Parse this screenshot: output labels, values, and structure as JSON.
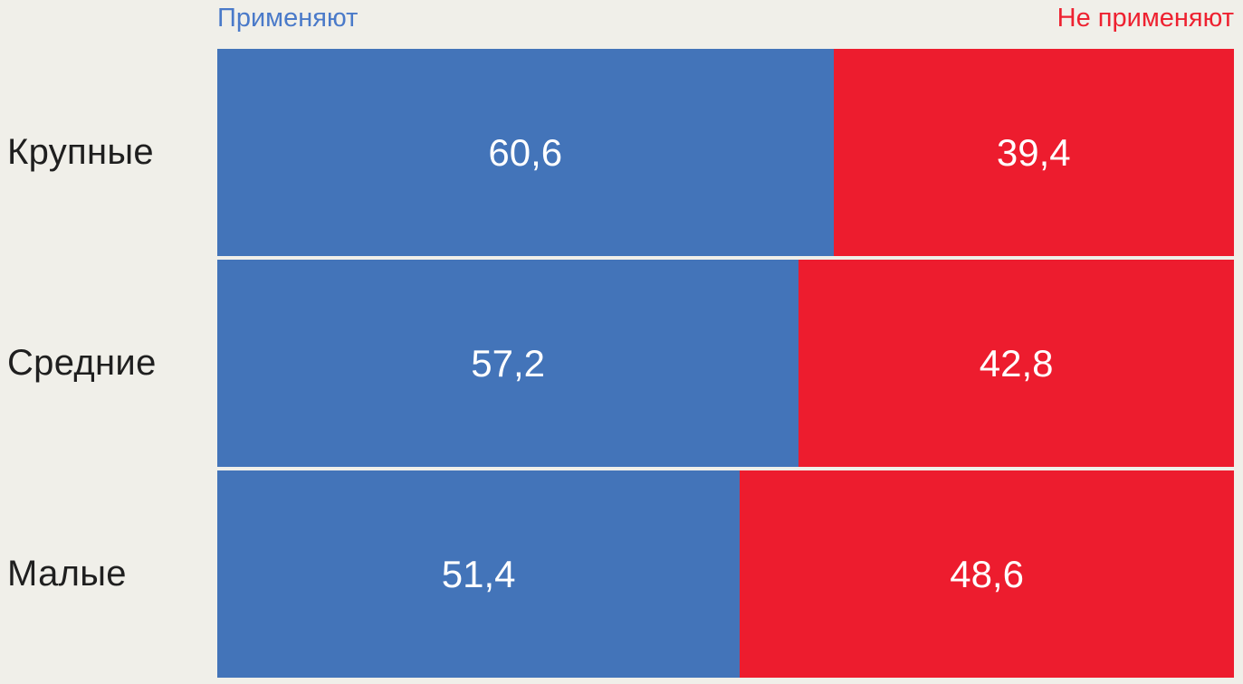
{
  "chart_data": {
    "type": "bar",
    "subtype": "horizontal-stacked-100",
    "title": "",
    "xlabel": "",
    "ylabel": "",
    "xlim": [
      0,
      100
    ],
    "grid": false,
    "legend_position": "top",
    "categories": [
      "Крупные",
      "Средние",
      "Малые"
    ],
    "series": [
      {
        "key": "apply",
        "name": "Применяют",
        "color": "#4374b9",
        "values": [
          60.6,
          57.2,
          51.4
        ],
        "labels": [
          "60,6",
          "57,2",
          "51,4"
        ]
      },
      {
        "key": "not-apply",
        "name": "Не применяют",
        "color": "#ed1c2e",
        "values": [
          39.4,
          42.8,
          48.6
        ],
        "labels": [
          "39,4",
          "42,8",
          "48,6"
        ]
      }
    ]
  },
  "legend": {
    "apply_label": "Применяют",
    "not_apply_label": "Не применяют"
  },
  "colors": {
    "background": "#f0efe9",
    "blue_bar": "#4374b9",
    "red_bar": "#ed1c2e",
    "legend_blue_text": "#4a7ac9",
    "legend_red_text": "#ee2130",
    "category_text": "#1f1f1f",
    "value_text": "#ffffff"
  }
}
